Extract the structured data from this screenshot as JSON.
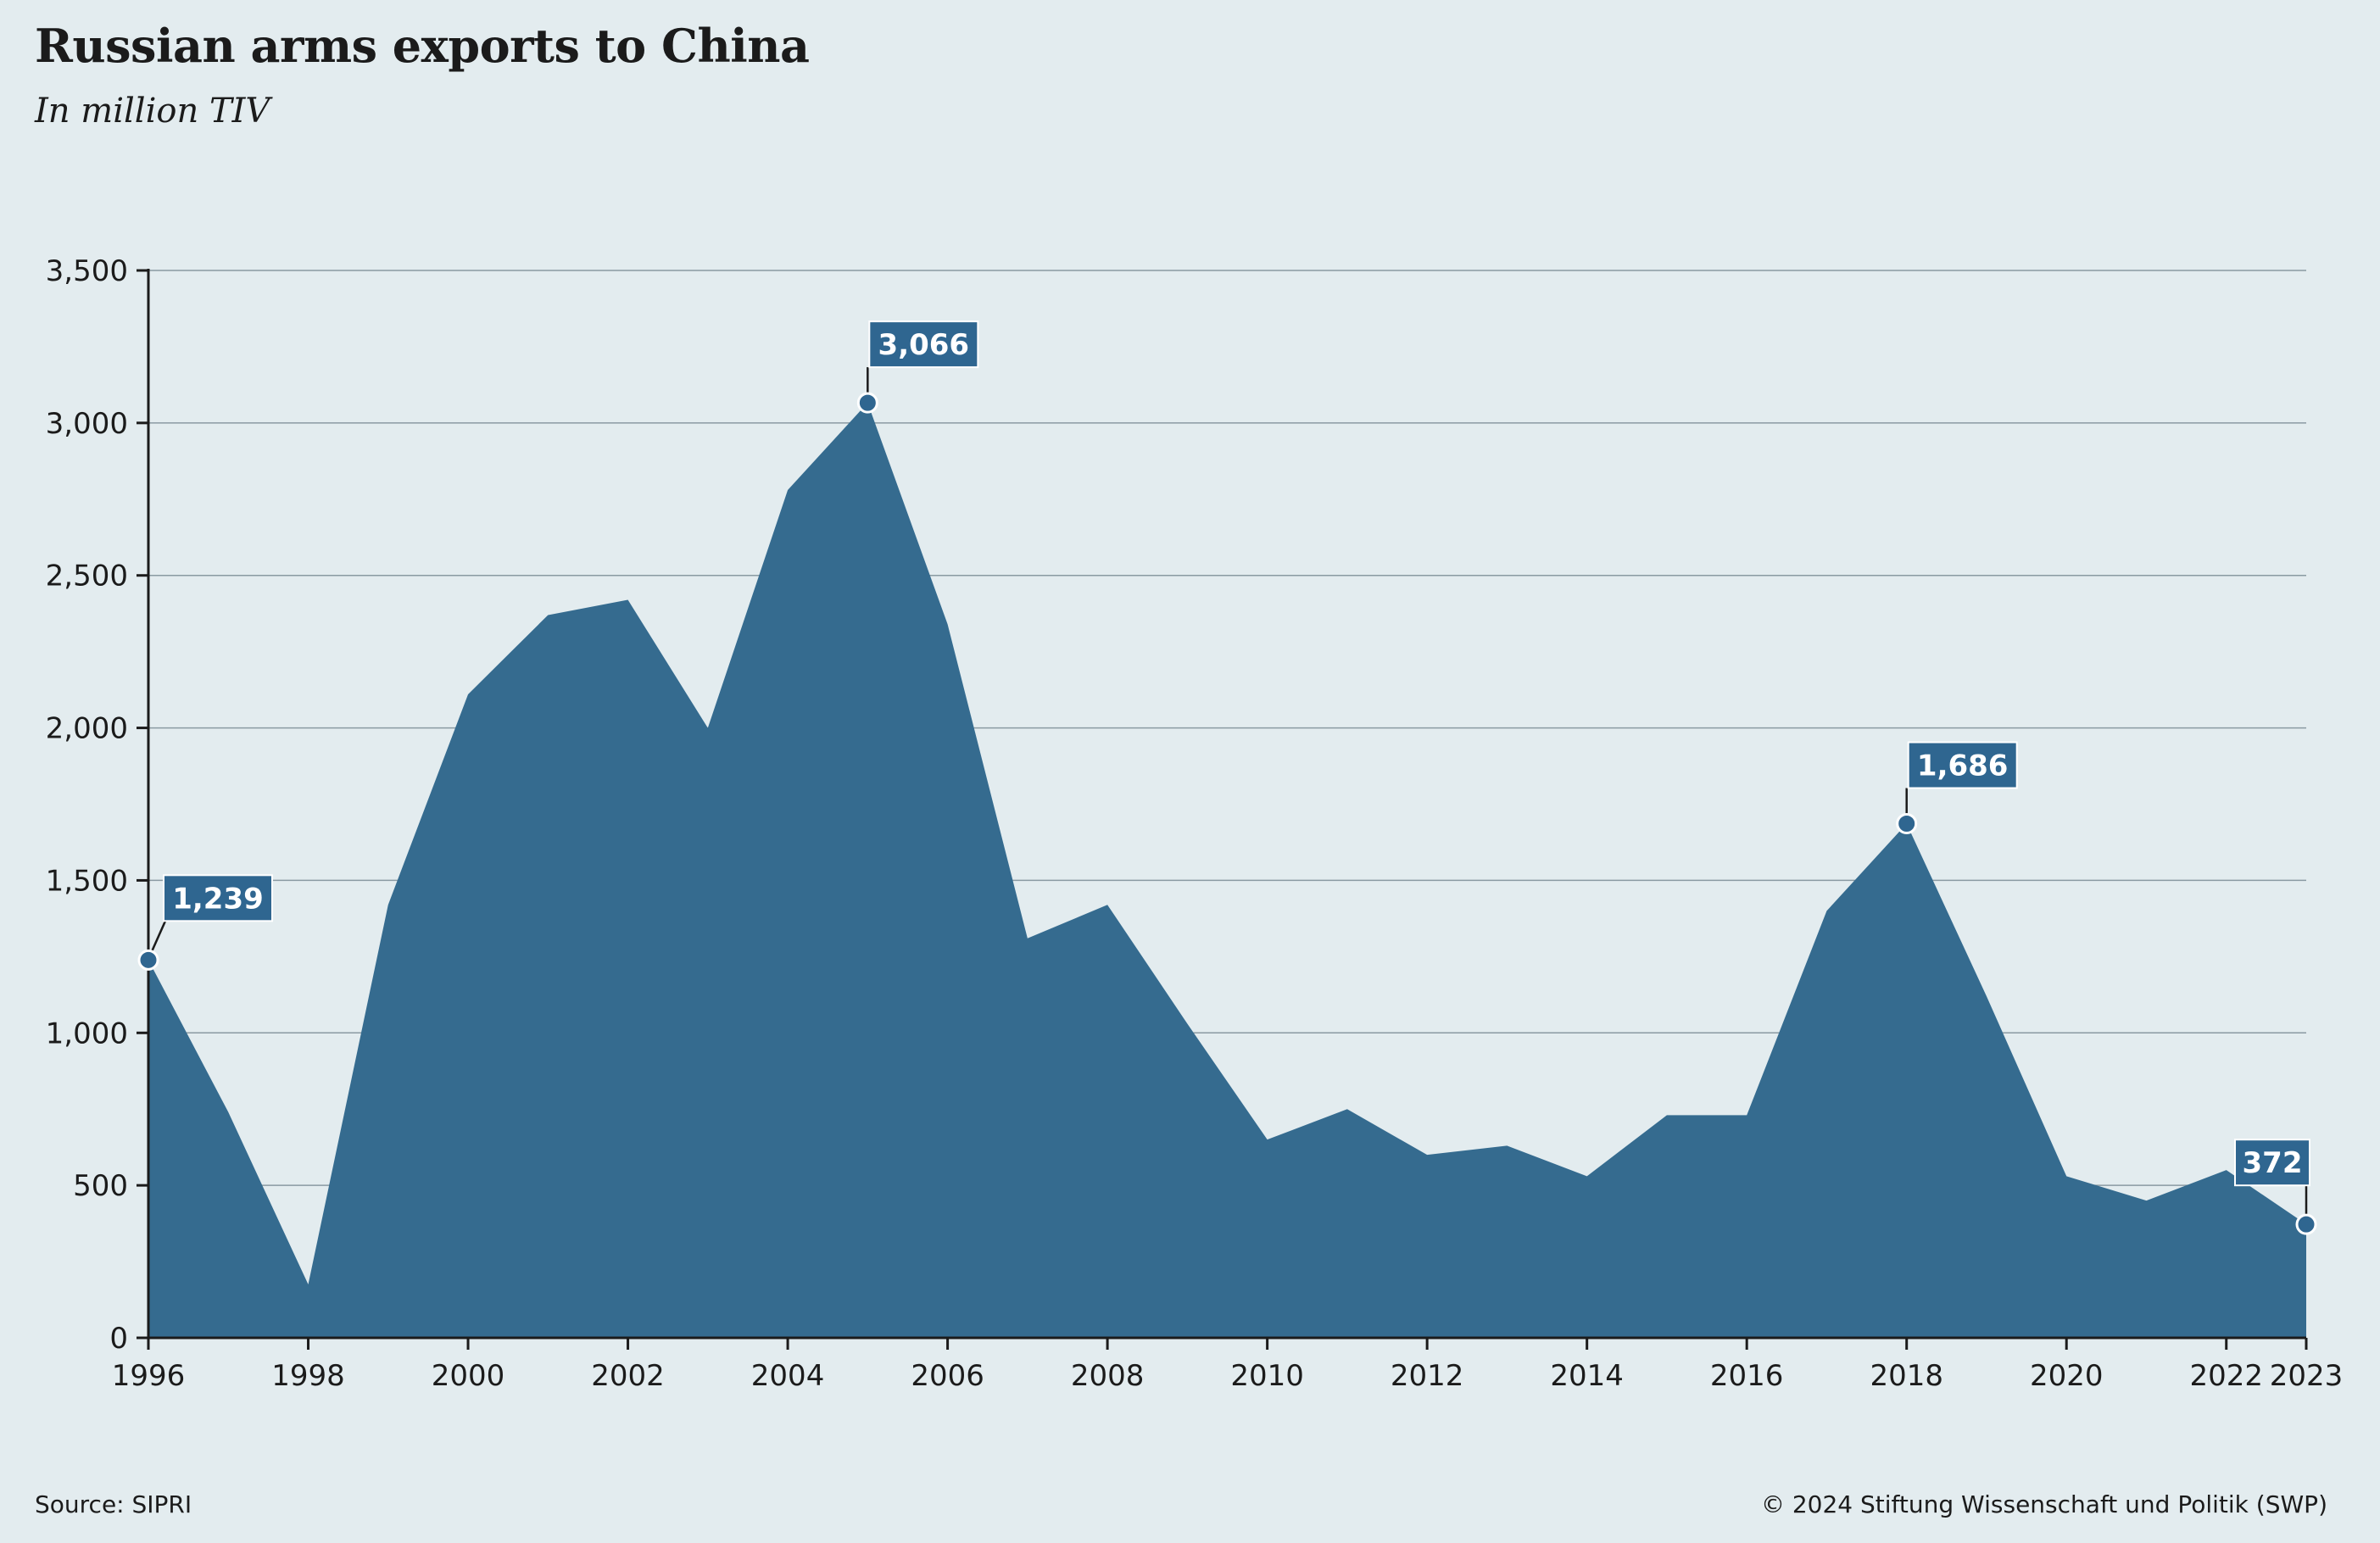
{
  "header": {
    "title": "Russian arms exports to China",
    "subtitle": "In million TIV"
  },
  "footer": {
    "source": "Source: SIPRI",
    "copyright": "© 2024 Stiftung Wissenschaft und Politik (SWP)"
  },
  "colors": {
    "area": "#356b8f",
    "callout": "#2f6690",
    "background": "#e3ecef"
  },
  "chart_data": {
    "type": "area",
    "title": "Russian arms exports to China",
    "subtitle": "In million TIV",
    "xlabel": "",
    "ylabel": "",
    "x": [
      1996,
      1997,
      1998,
      1999,
      2000,
      2001,
      2002,
      2003,
      2004,
      2005,
      2006,
      2007,
      2008,
      2009,
      2010,
      2011,
      2012,
      2013,
      2014,
      2015,
      2016,
      2017,
      2018,
      2019,
      2020,
      2021,
      2022,
      2023
    ],
    "values": [
      1239,
      740,
      175,
      1420,
      2110,
      2370,
      2420,
      2000,
      2780,
      3066,
      2340,
      1310,
      1420,
      1030,
      650,
      750,
      600,
      630,
      530,
      730,
      730,
      1400,
      1686,
      1120,
      530,
      450,
      550,
      372
    ],
    "ylim": [
      0,
      3500
    ],
    "yticks": [
      0,
      500,
      1000,
      1500,
      2000,
      2500,
      3000,
      3500
    ],
    "ytick_labels": [
      "0",
      "500",
      "1,000",
      "1,500",
      "2,000",
      "2,500",
      "3,000",
      "3,500"
    ],
    "xticks": [
      1996,
      1998,
      2000,
      2002,
      2004,
      2006,
      2008,
      2010,
      2012,
      2014,
      2016,
      2018,
      2020,
      2022,
      2023
    ],
    "xtick_labels": [
      "1996",
      "1998",
      "2000",
      "2002",
      "2004",
      "2006",
      "2008",
      "2010",
      "2012",
      "2014",
      "2016",
      "2018",
      "2020",
      "2022",
      "2023"
    ],
    "grid": true,
    "annotations": [
      {
        "x": 1996,
        "value": 1239,
        "label": "1,239"
      },
      {
        "x": 2005,
        "value": 3066,
        "label": "3,066"
      },
      {
        "x": 2018,
        "value": 1686,
        "label": "1,686"
      },
      {
        "x": 2023,
        "value": 372,
        "label": "372"
      }
    ]
  }
}
